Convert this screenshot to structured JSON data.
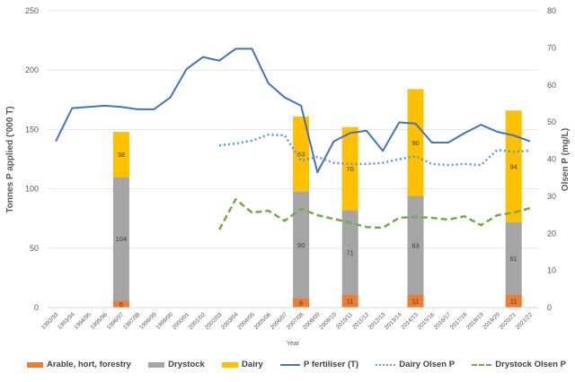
{
  "chart_data": {
    "type": "bar+line",
    "title": "",
    "xlabel": "Year",
    "ylabel_left": "Tonnes P applied ('000 T)",
    "ylabel_right": "Olsen P (mg/L)",
    "ylim_left": [
      0,
      250
    ],
    "yticks_left": [
      0,
      50,
      100,
      150,
      200,
      250
    ],
    "ylim_right": [
      0,
      80
    ],
    "yticks_right": [
      0,
      10,
      20,
      30,
      40,
      50,
      60,
      70,
      80
    ],
    "grid": true,
    "legend_placement": "bottom",
    "categories": [
      "1992/93",
      "1993/94",
      "1994/95",
      "1995/96",
      "1996/97",
      "1997/98",
      "1998/99",
      "1999/00",
      "2000/01",
      "2001/02",
      "2002/03",
      "2003/04",
      "2004/05",
      "2005/06",
      "2006/07",
      "2007/08",
      "2008/09",
      "2009/10",
      "2010/11",
      "2011/12",
      "2012/13",
      "2013/14",
      "2014/15",
      "2015/16",
      "2016/17",
      "2017/18",
      "2018/19",
      "2019/20",
      "2020/21",
      "2021/22"
    ],
    "bar_series": [
      {
        "name": "Arable, hort, forestry",
        "color": "#ED7D31",
        "values": {
          "1996/97": 6,
          "2007/08": 8,
          "2010/11": 11,
          "2014/15": 11,
          "2020/21": 11
        }
      },
      {
        "name": "Drystock",
        "color": "#A5A5A5",
        "values": {
          "1996/97": 104,
          "2007/08": 90,
          "2010/11": 71,
          "2014/15": 83,
          "2020/21": 61
        }
      },
      {
        "name": "Dairy",
        "color": "#FFC000",
        "values": {
          "1996/97": 38,
          "2007/08": 63,
          "2010/11": 70,
          "2014/15": 90,
          "2020/21": 94
        }
      }
    ],
    "line_series": [
      {
        "name": "P fertiliser (T)",
        "axis": "left",
        "style": "solid",
        "color": "#4472C4",
        "values": [
          140,
          168,
          169,
          170,
          169,
          167,
          167,
          177,
          201,
          211,
          208,
          218,
          218,
          189,
          177,
          170,
          114,
          140,
          147,
          149,
          132,
          156,
          155,
          139,
          139,
          147,
          154,
          148,
          145,
          140
        ]
      },
      {
        "name": "Dairy Olsen P",
        "axis": "right",
        "style": "dotted",
        "color": "#5B9BD5",
        "values": [
          null,
          null,
          null,
          null,
          null,
          null,
          null,
          null,
          null,
          null,
          43.7,
          44.2,
          45,
          46.6,
          46.4,
          39.6,
          40.6,
          39,
          38.7,
          38.7,
          39,
          40,
          40.8,
          38.7,
          38.4,
          38.7,
          38.4,
          42.5,
          42,
          42.3
        ]
      },
      {
        "name": "Drystock Olsen P",
        "axis": "right",
        "style": "dashed",
        "color": "#70AD47",
        "values": [
          null,
          null,
          null,
          null,
          null,
          null,
          null,
          null,
          null,
          null,
          21,
          29.2,
          25.6,
          26.1,
          23.4,
          26.6,
          24.9,
          23.9,
          22.9,
          21.7,
          21.5,
          24.2,
          24.4,
          24.2,
          23.7,
          24.6,
          22.2,
          24.9,
          25.6,
          26.8
        ]
      }
    ]
  }
}
